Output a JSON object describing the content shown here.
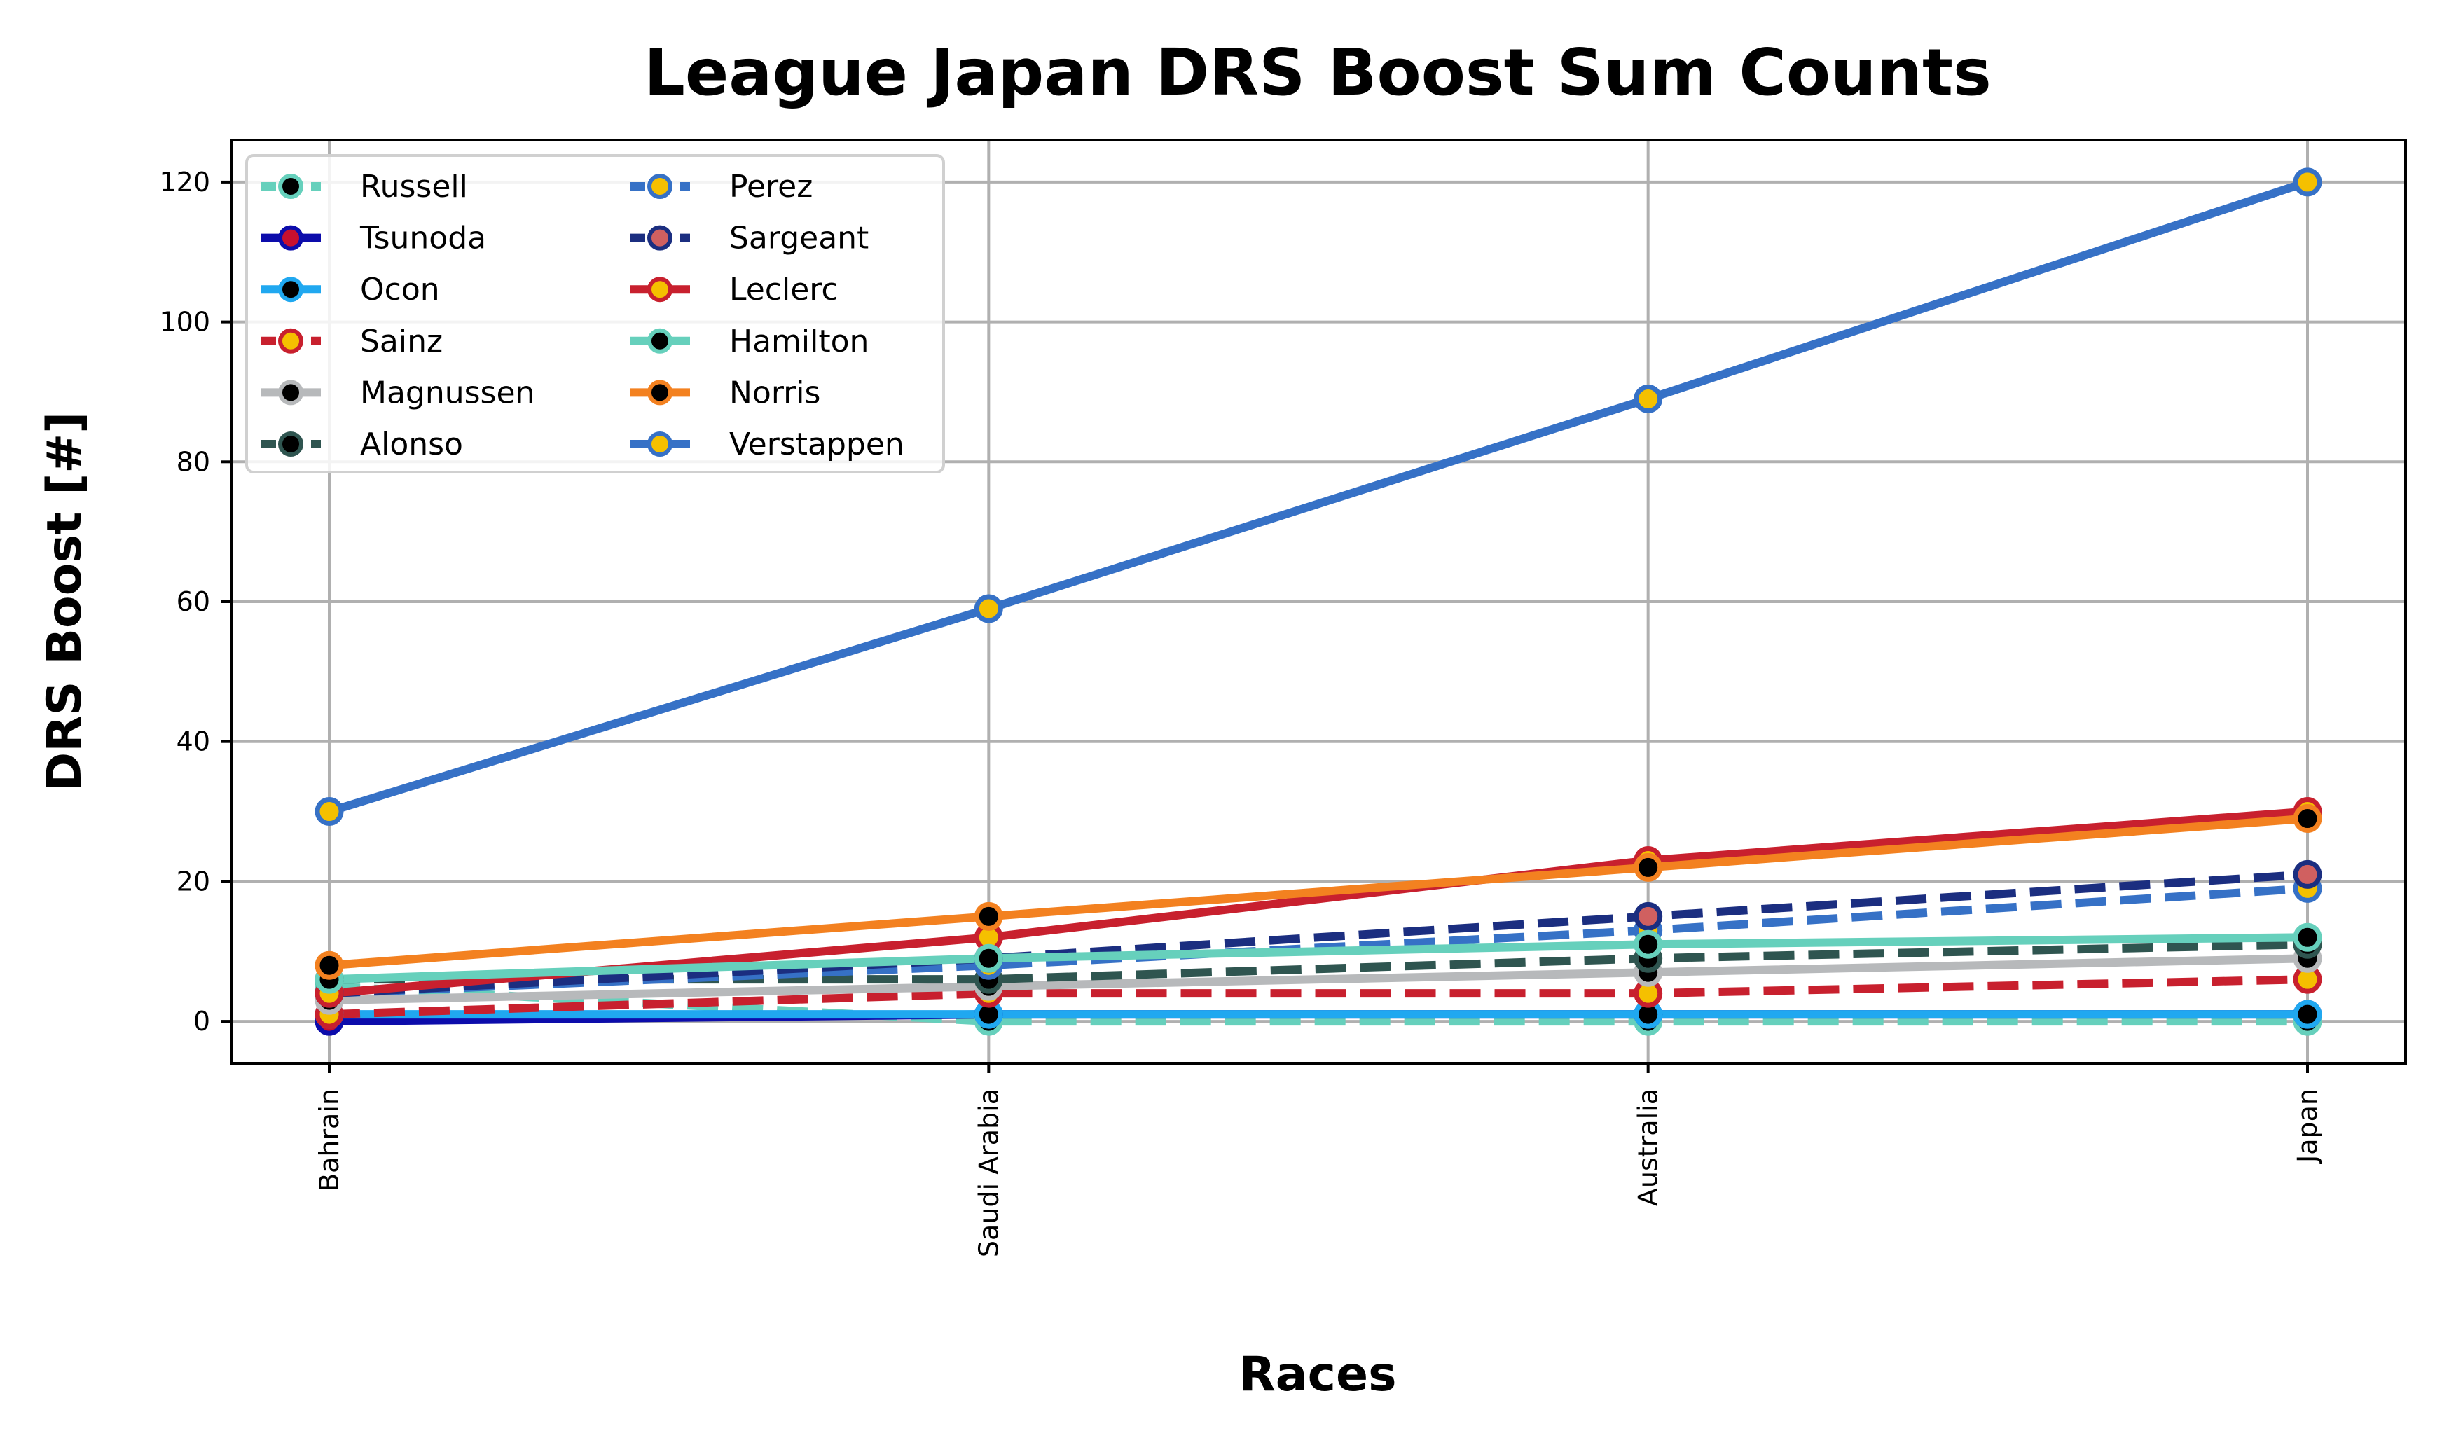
{
  "chart_data": {
    "type": "line",
    "title": "League Japan DRS Boost Sum Counts",
    "xlabel": "Races",
    "ylabel": "DRS Boost [#]",
    "categories": [
      "Bahrain",
      "Saudi Arabia",
      "Australia",
      "Japan"
    ],
    "ylim": [
      -6,
      126
    ],
    "yticks": [
      0,
      20,
      40,
      60,
      80,
      100,
      120
    ],
    "grid": true,
    "legend_position": "top-left",
    "series": [
      {
        "name": "Russell",
        "values": [
          5,
          0,
          0,
          0
        ],
        "color": "#66d0bc",
        "marker_face": "#000000",
        "marker_edge": "#66d0bc",
        "dash": "dashed"
      },
      {
        "name": "Tsunoda",
        "values": [
          0,
          1,
          1,
          1
        ],
        "color": "#0c0cab",
        "marker_face": "#c8102e",
        "marker_edge": "#0c0cab",
        "dash": "solid"
      },
      {
        "name": "Ocon",
        "values": [
          1,
          1,
          1,
          1
        ],
        "color": "#20a8f0",
        "marker_face": "#000000",
        "marker_edge": "#20a8f0",
        "dash": "solid"
      },
      {
        "name": "Sainz",
        "values": [
          1,
          4,
          4,
          6
        ],
        "color": "#c8202e",
        "marker_face": "#f5c000",
        "marker_edge": "#c8202e",
        "dash": "dashed"
      },
      {
        "name": "Magnussen",
        "values": [
          3,
          5,
          7,
          9
        ],
        "color": "#b7b9bb",
        "marker_face": "#000000",
        "marker_edge": "#b7b9bb",
        "dash": "solid"
      },
      {
        "name": "Alonso",
        "values": [
          6,
          6,
          9,
          11
        ],
        "color": "#2f5550",
        "marker_face": "#000000",
        "marker_edge": "#2f5550",
        "dash": "dashed"
      },
      {
        "name": "Perez",
        "values": [
          4,
          8,
          13,
          19
        ],
        "color": "#3671c6",
        "marker_face": "#f5c000",
        "marker_edge": "#3671c6",
        "dash": "dashed"
      },
      {
        "name": "Sargeant",
        "values": [
          4,
          9,
          15,
          21
        ],
        "color": "#1b2e80",
        "marker_face": "#d06060",
        "marker_edge": "#1b2e80",
        "dash": "dashed"
      },
      {
        "name": "Leclerc",
        "values": [
          4,
          12,
          23,
          30
        ],
        "color": "#c8202e",
        "marker_face": "#f5c000",
        "marker_edge": "#c8202e",
        "dash": "solid"
      },
      {
        "name": "Hamilton",
        "values": [
          6,
          9,
          11,
          12
        ],
        "color": "#66d0bc",
        "marker_face": "#000000",
        "marker_edge": "#66d0bc",
        "dash": "solid"
      },
      {
        "name": "Norris",
        "values": [
          8,
          15,
          22,
          29
        ],
        "color": "#f38120",
        "marker_face": "#000000",
        "marker_edge": "#f38120",
        "dash": "solid"
      },
      {
        "name": "Verstappen",
        "values": [
          30,
          59,
          89,
          120
        ],
        "color": "#3671c6",
        "marker_face": "#f5c000",
        "marker_edge": "#3671c6",
        "dash": "solid"
      }
    ]
  }
}
